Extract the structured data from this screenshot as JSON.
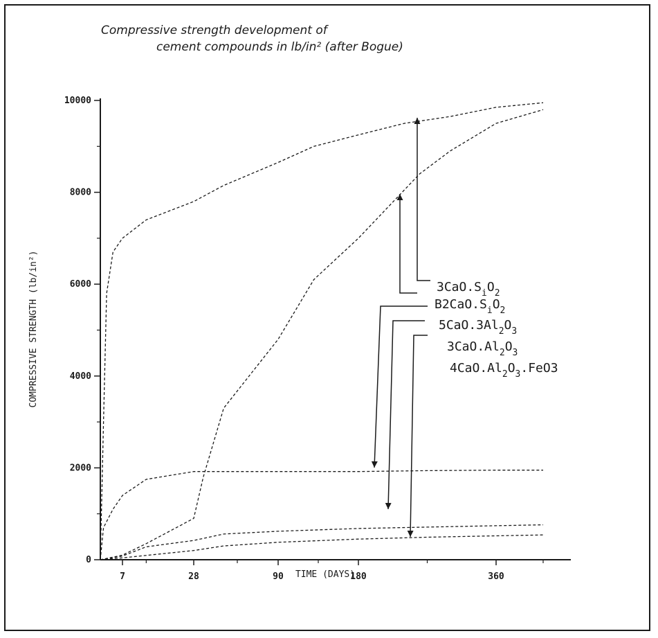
{
  "chart_data": {
    "type": "line",
    "title": {
      "line1": "Compressive strength development of",
      "line2": "cement compounds in lb/in² (after Bogue)"
    },
    "xlabel": "TIME (DAYS)",
    "ylabel": "COMPRESSIVE STRENGTH (lb/in²)",
    "xticks": [
      "7",
      "28",
      "90",
      "180",
      "360"
    ],
    "yticks": [
      0,
      2000,
      4000,
      6000,
      8000,
      10000
    ],
    "ylim": [
      0,
      10000
    ],
    "grid": false,
    "x_scale": "non-linear (tick labels 7, 28, 90, 180, 360 days)",
    "series": [
      {
        "name": "3CaO.SiO2",
        "label_parts": [
          "3CaO.S",
          "i",
          "O",
          "2",
          ""
        ],
        "points": [
          [
            0,
            0
          ],
          [
            1,
            3000
          ],
          [
            2,
            5800
          ],
          [
            4,
            6700
          ],
          [
            7,
            7000
          ],
          [
            14,
            7400
          ],
          [
            28,
            7800
          ],
          [
            50,
            8150
          ],
          [
            90,
            8650
          ],
          [
            130,
            9000
          ],
          [
            180,
            9250
          ],
          [
            240,
            9500
          ],
          [
            300,
            9650
          ],
          [
            360,
            9850
          ],
          [
            400,
            9950
          ]
        ]
      },
      {
        "name": "B2CaO.SiO2",
        "label_parts": [
          "B2CaO.S",
          "i",
          "O",
          "2",
          ""
        ],
        "points": [
          [
            0,
            0
          ],
          [
            7,
            100
          ],
          [
            14,
            350
          ],
          [
            28,
            900
          ],
          [
            35,
            1800
          ],
          [
            50,
            3300
          ],
          [
            90,
            4800
          ],
          [
            130,
            6100
          ],
          [
            180,
            7000
          ],
          [
            220,
            7700
          ],
          [
            260,
            8400
          ],
          [
            300,
            8900
          ],
          [
            360,
            9500
          ],
          [
            400,
            9800
          ]
        ]
      },
      {
        "name": "5CaO.3Al2O3",
        "label_parts": [
          "5CaO.3Al",
          "2",
          "O",
          "3",
          ""
        ],
        "points": [
          [
            0,
            0
          ],
          [
            1,
            700
          ],
          [
            4,
            1100
          ],
          [
            7,
            1400
          ],
          [
            14,
            1750
          ],
          [
            28,
            1920
          ],
          [
            90,
            1920
          ],
          [
            180,
            1920
          ],
          [
            270,
            1940
          ],
          [
            360,
            1950
          ],
          [
            400,
            1950
          ]
        ]
      },
      {
        "name": "3CaO.Al2O3",
        "label_parts": [
          "3CaO.Al",
          "2",
          "O",
          "3",
          ""
        ],
        "points": [
          [
            0,
            0
          ],
          [
            7,
            80
          ],
          [
            14,
            280
          ],
          [
            28,
            420
          ],
          [
            50,
            560
          ],
          [
            90,
            620
          ],
          [
            180,
            680
          ],
          [
            270,
            710
          ],
          [
            360,
            740
          ],
          [
            400,
            760
          ]
        ]
      },
      {
        "name": "4CaO.Al2O3.FeO3",
        "label_parts": [
          "4CaO.Al",
          "2",
          "O",
          "3",
          ".FeO3"
        ],
        "points": [
          [
            0,
            0
          ],
          [
            7,
            40
          ],
          [
            28,
            200
          ],
          [
            50,
            300
          ],
          [
            90,
            380
          ],
          [
            180,
            450
          ],
          [
            270,
            490
          ],
          [
            360,
            520
          ],
          [
            400,
            540
          ]
        ]
      }
    ]
  }
}
